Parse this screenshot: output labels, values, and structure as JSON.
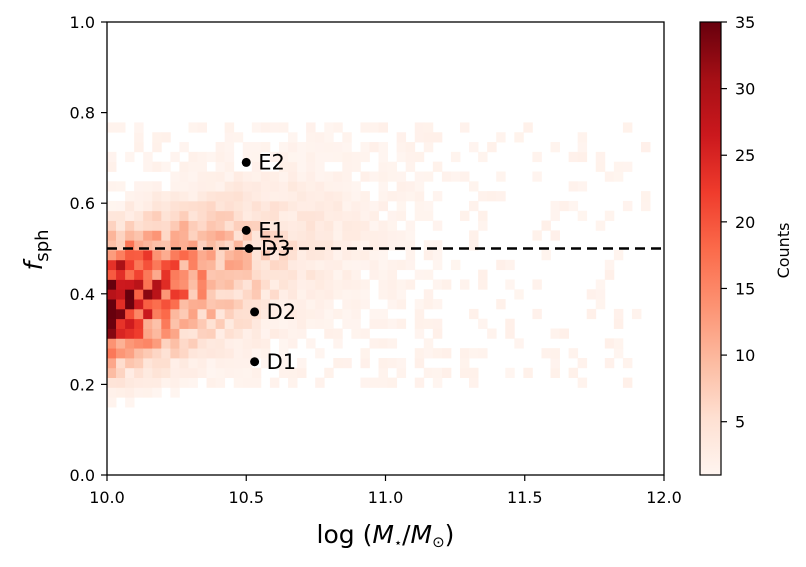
{
  "chart_data": {
    "type": "heatmap",
    "title": "",
    "xlabel_main": "log (",
    "xlabel_m1": "M",
    "xlabel_star": "⋆",
    "xlabel_slash": "/",
    "xlabel_m2": "M",
    "xlabel_sun": "⊙",
    "xlabel_close": ")",
    "xlabel_text": "log (M⋆/M⊙)",
    "ylabel_f": "f",
    "ylabel_sub": "sph",
    "ylabel_text": "f_sph",
    "xlim": [
      10.0,
      12.0
    ],
    "ylim": [
      0.0,
      1.0
    ],
    "x_ticks": [
      "10.0",
      "10.5",
      "11.0",
      "11.5",
      "12.0"
    ],
    "x_tick_values": [
      10.0,
      10.5,
      11.0,
      11.5,
      12.0
    ],
    "y_ticks": [
      "0.0",
      "0.2",
      "0.4",
      "0.6",
      "0.8",
      "1.0"
    ],
    "y_tick_values": [
      0.0,
      0.2,
      0.4,
      0.6,
      0.8,
      1.0
    ],
    "threshold_line": {
      "y": 0.5,
      "style": "dashed",
      "color": "#000000"
    },
    "points": [
      {
        "label": "E2",
        "x": 10.5,
        "y": 0.69
      },
      {
        "label": "E1",
        "x": 10.5,
        "y": 0.54
      },
      {
        "label": "D3",
        "x": 10.51,
        "y": 0.5
      },
      {
        "label": "D2",
        "x": 10.53,
        "y": 0.36
      },
      {
        "label": "D1",
        "x": 10.53,
        "y": 0.25
      }
    ],
    "colorbar": {
      "label": "Counts",
      "min": 1,
      "max": 35,
      "ticks": [
        "5",
        "10",
        "15",
        "20",
        "25",
        "30",
        "35"
      ],
      "tick_values": [
        5,
        10,
        15,
        20,
        25,
        30,
        35
      ],
      "colormap": "Reds",
      "colors": [
        "#fff5f0",
        "#fee0d2",
        "#fcbba1",
        "#fc9272",
        "#fb6a4a",
        "#ef3b2c",
        "#cb181d",
        "#a50f15",
        "#67000d"
      ]
    },
    "density_model": {
      "note": "Count distribution of galaxies in (log M*, f_sph) bins; peak counts near log M* 10.0-10.3 and f_sph 0.3-0.45",
      "bins_x": 60,
      "bins_y": 30,
      "bin_x_range": [
        10.0,
        11.95
      ],
      "bin_y_range": [
        0.15,
        0.8
      ]
    }
  }
}
